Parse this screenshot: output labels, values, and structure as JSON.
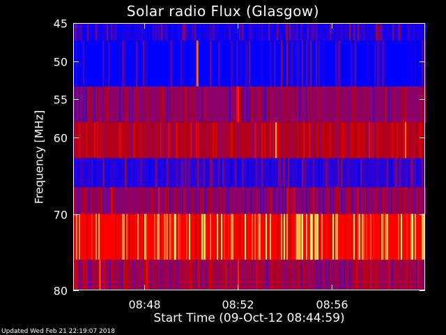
{
  "footer": {
    "updated": "Updated Wed Feb 21 22:19:07 2018"
  },
  "chart_data": {
    "type": "heatmap",
    "title": "Solar radio Flux (Glasgow)",
    "xlabel": "Start Time (09-Oct-12 08:44:59)",
    "ylabel": "Frequency [MHz]",
    "x_ticks": [
      "08:48",
      "08:52",
      "08:56"
    ],
    "x_tick_minutes": [
      3.0167,
      7.0167,
      11.0167
    ],
    "xlim_minutes": [
      0,
      15.0
    ],
    "y_ticks": [
      45,
      50,
      55,
      60,
      70,
      80
    ],
    "ylim": [
      45,
      80
    ],
    "grid": false,
    "colormap": [
      "#0000ff",
      "#800080",
      "#c00000",
      "#ff0000",
      "#ffff60"
    ],
    "bands": [
      {
        "f_from": 45.0,
        "f_to": 47.3,
        "level": 0.05
      },
      {
        "f_from": 47.3,
        "f_to": 53.3,
        "level": 0.0
      },
      {
        "f_from": 53.3,
        "f_to": 58.0,
        "level": 0.3
      },
      {
        "f_from": 58.0,
        "f_to": 62.7,
        "level": 0.45
      },
      {
        "f_from": 62.7,
        "f_to": 66.5,
        "level": 0.08
      },
      {
        "f_from": 66.5,
        "f_to": 70.0,
        "level": 0.3
      },
      {
        "f_from": 70.0,
        "f_to": 76.0,
        "level": 0.75
      },
      {
        "f_from": 76.0,
        "f_to": 80.0,
        "level": 0.35
      }
    ],
    "bursts": [
      {
        "minute": 5.25,
        "f_from": 47.3,
        "f_to": 53.3,
        "level": 0.85
      },
      {
        "minute": 1.1,
        "f_from": 76.0,
        "f_to": 80.0,
        "level": 0.8
      },
      {
        "minute": 3.1,
        "f_from": 76.0,
        "f_to": 80.0,
        "level": 0.75
      },
      {
        "minute": 4.3,
        "f_from": 70.0,
        "f_to": 76.0,
        "level": 0.98
      },
      {
        "minute": 5.55,
        "f_from": 70.0,
        "f_to": 76.0,
        "level": 0.95
      },
      {
        "minute": 7.9,
        "f_from": 70.0,
        "f_to": 76.0,
        "level": 0.92
      },
      {
        "minute": 10.1,
        "f_from": 70.0,
        "f_to": 76.0,
        "level": 1.0
      },
      {
        "minute": 10.3,
        "f_from": 70.0,
        "f_to": 76.0,
        "level": 0.97
      },
      {
        "minute": 13.3,
        "f_from": 70.0,
        "f_to": 76.0,
        "level": 0.9
      }
    ]
  }
}
